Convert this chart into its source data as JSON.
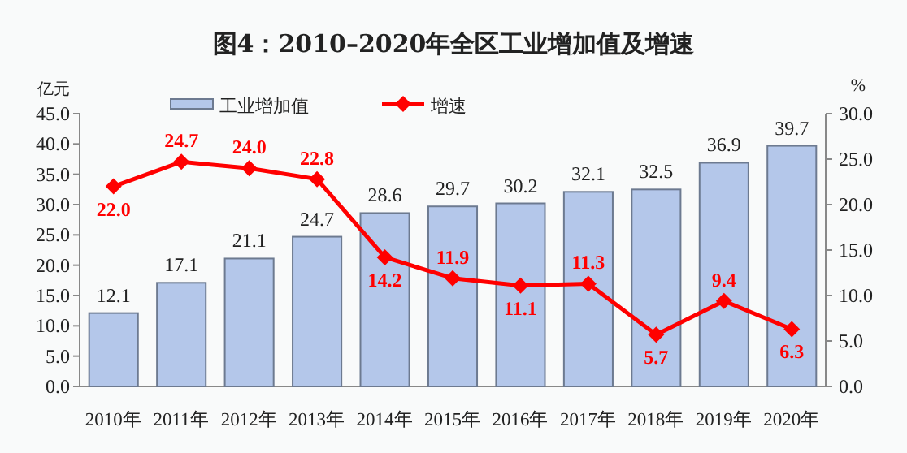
{
  "chart_data": {
    "type": "bar",
    "title": "图4：2010–2020年全区工业增加值及增速",
    "ylabel": "亿元",
    "y2label": "%",
    "categories": [
      "2010年",
      "2011年",
      "2012年",
      "2013年",
      "2014年",
      "2015年",
      "2016年",
      "2017年",
      "2018年",
      "2019年",
      "2020年"
    ],
    "series": [
      {
        "name": "工业增加值",
        "color": "#b4c7ea",
        "values": [
          12.1,
          17.1,
          21.1,
          24.7,
          28.6,
          29.7,
          30.2,
          32.1,
          32.5,
          36.9,
          39.7
        ]
      },
      {
        "name": "增速",
        "type": "line",
        "axis": "y2",
        "color": "#ff0000",
        "values": [
          22.0,
          24.7,
          24.0,
          22.8,
          14.2,
          11.9,
          11.1,
          11.3,
          5.7,
          9.4,
          6.3
        ],
        "value_labels": [
          "22.0",
          "24.7",
          "24.0",
          "22.8",
          "14.2",
          "11.9",
          "11.1",
          "11.3",
          "5.7",
          "9.4",
          "6.3"
        ]
      }
    ],
    "ylim": [
      0,
      45
    ],
    "yticks": [
      {
        "value": 0,
        "label": "0.0"
      },
      {
        "value": 5,
        "label": "5.0"
      },
      {
        "value": 10,
        "label": "10.0"
      },
      {
        "value": 15,
        "label": "15.0"
      },
      {
        "value": 20,
        "label": "20.0"
      },
      {
        "value": 25,
        "label": "25.0"
      },
      {
        "value": 30,
        "label": "30.0"
      },
      {
        "value": 35,
        "label": "35.0"
      },
      {
        "value": 40,
        "label": "40.0"
      },
      {
        "value": 45,
        "label": "45.0"
      }
    ],
    "y2lim": [
      0,
      30
    ],
    "y2ticks": [
      {
        "value": 0,
        "label": "0.0"
      },
      {
        "value": 5,
        "label": "5.0"
      },
      {
        "value": 10,
        "label": "10.0"
      },
      {
        "value": 15,
        "label": "15.0"
      },
      {
        "value": 20,
        "label": "20.0"
      },
      {
        "value": 25,
        "label": "25.0"
      },
      {
        "value": 30,
        "label": "30.0"
      }
    ],
    "legend": "top",
    "marker": "diamond",
    "data_labels": true
  }
}
